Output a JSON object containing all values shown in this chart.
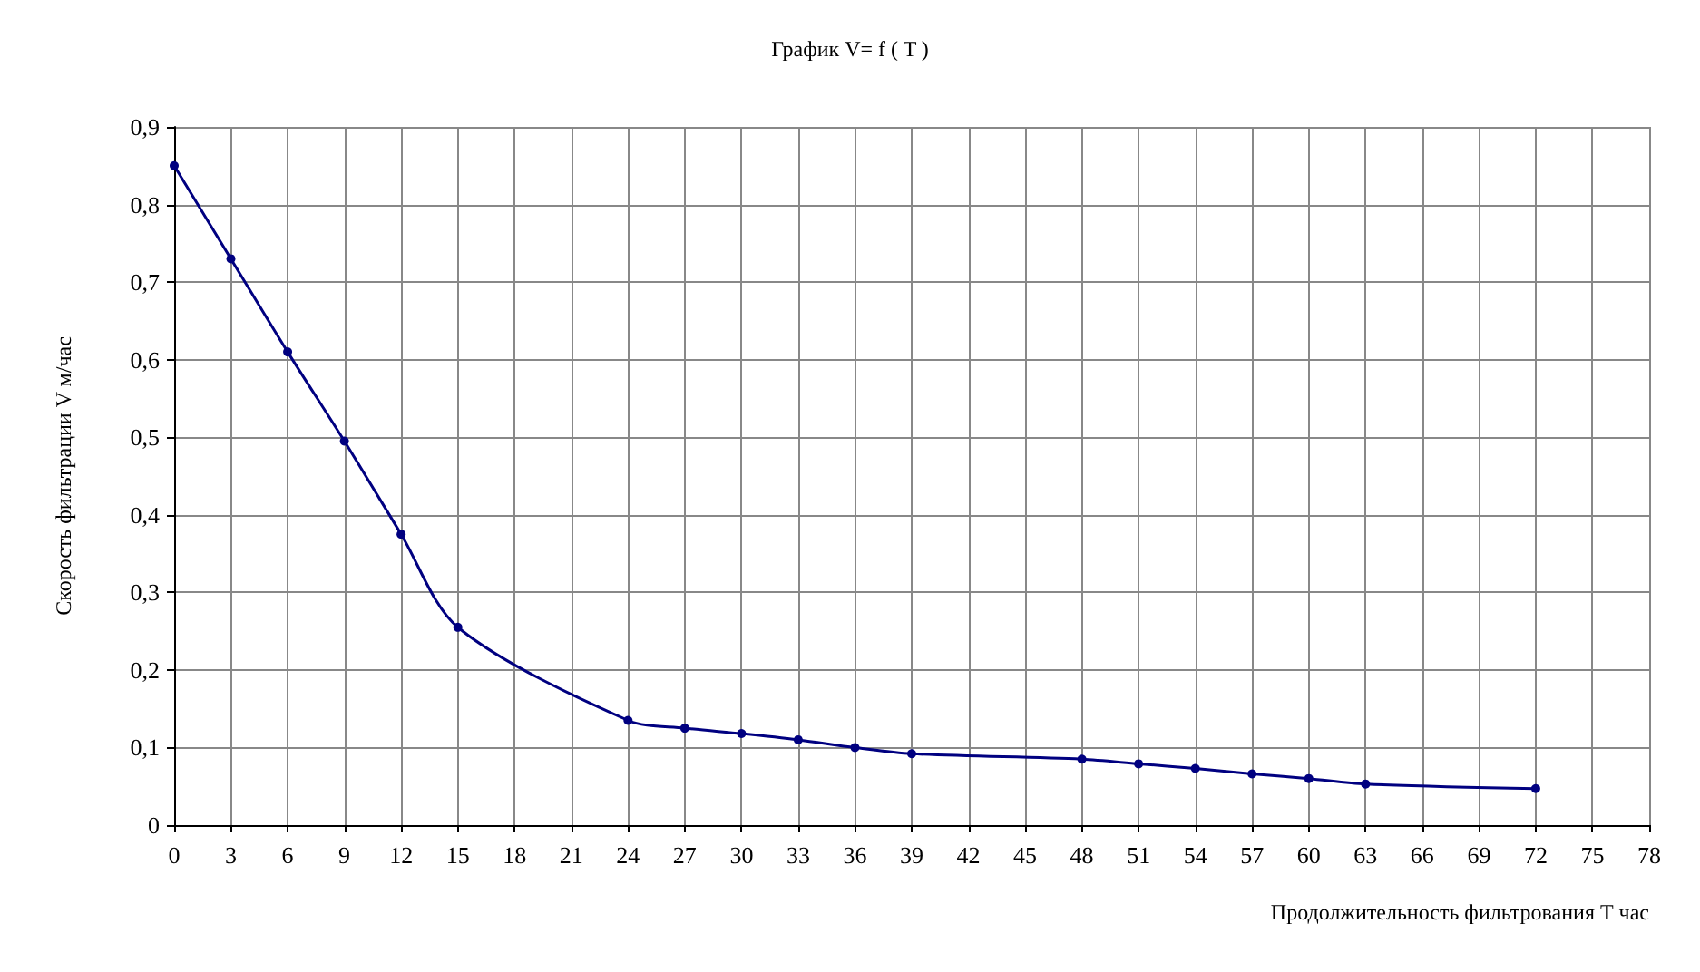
{
  "chart_data": {
    "type": "line",
    "title": "График V= f ( T )",
    "xlabel": "Продолжительность фильтрования Т час",
    "ylabel": "Скорость фильтрации V м/час",
    "x": [
      0,
      3,
      6,
      9,
      12,
      15,
      24,
      27,
      30,
      33,
      36,
      39,
      48,
      51,
      54,
      57,
      60,
      63,
      72
    ],
    "series": [
      {
        "color": "#000080",
        "values": [
          0.85,
          0.73,
          0.61,
          0.495,
          0.375,
          0.255,
          0.135,
          0.125,
          0.118,
          0.11,
          0.1,
          0.092,
          0.085,
          0.079,
          0.073,
          0.066,
          0.06,
          0.053,
          0.047
        ]
      }
    ],
    "xlim": [
      0,
      78
    ],
    "xticks": [
      0,
      3,
      6,
      9,
      12,
      15,
      18,
      21,
      24,
      27,
      30,
      33,
      36,
      39,
      42,
      45,
      48,
      51,
      54,
      57,
      60,
      63,
      66,
      69,
      72,
      75,
      78
    ],
    "ylim": [
      0,
      0.9
    ],
    "yticks": [
      0,
      {
        "value": 0.1,
        "label": "0,1"
      },
      {
        "value": 0.2,
        "label": "0,2"
      },
      {
        "value": 0.3,
        "label": "0,3"
      },
      {
        "value": 0.4,
        "label": "0,4"
      },
      {
        "value": 0.5,
        "label": "0,5"
      },
      {
        "value": 0.6,
        "label": "0,6"
      },
      {
        "value": 0.7,
        "label": "0,7"
      },
      {
        "value": 0.8,
        "label": "0,8"
      },
      {
        "value": 0.9,
        "label": "0,9"
      }
    ],
    "grid": true,
    "marker": "circle",
    "line_style": "solid"
  }
}
